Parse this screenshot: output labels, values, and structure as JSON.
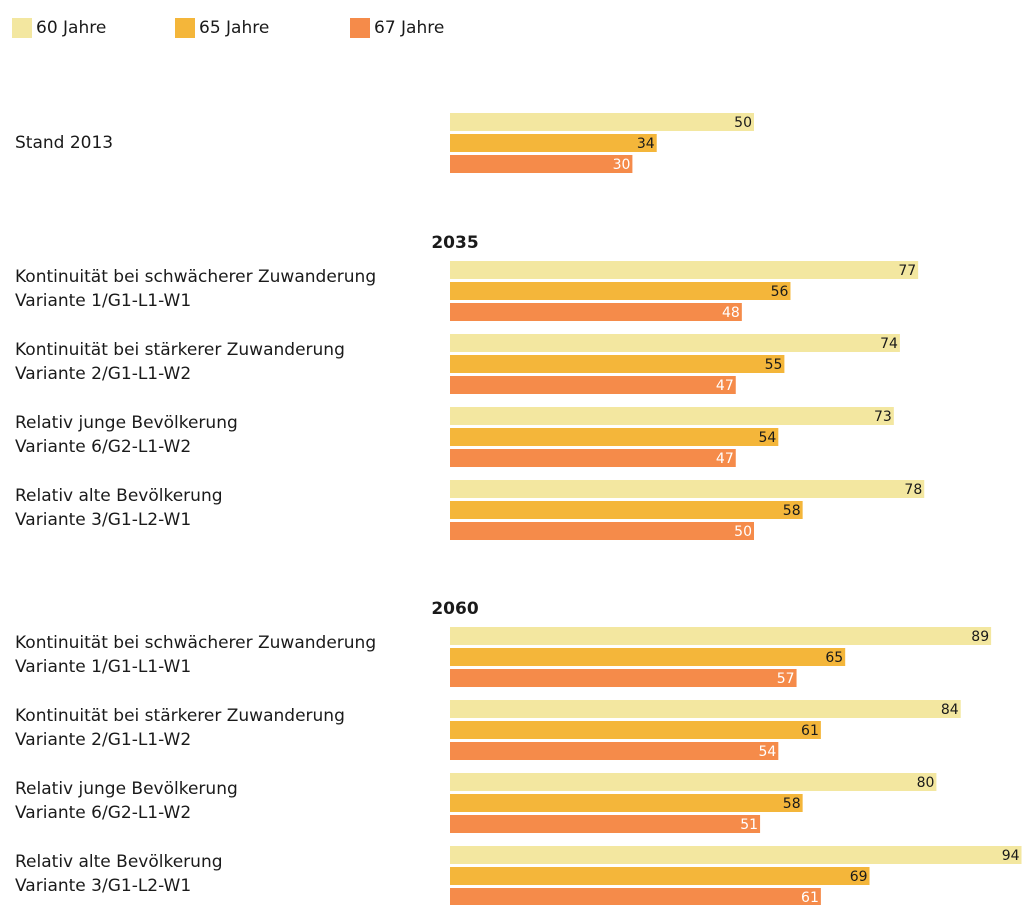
{
  "chart_data": {
    "type": "bar",
    "series": [
      {
        "name": "60 Jahre",
        "color": "#f3e7a0"
      },
      {
        "name": "65 Jahre",
        "color": "#f4b63a"
      },
      {
        "name": "67 Jahre",
        "color": "#f58b4a"
      }
    ],
    "groups": [
      {
        "title": null,
        "categories": [
          [
            "Stand 2013"
          ]
        ],
        "values": [
          [
            50
          ],
          [
            34
          ],
          [
            30
          ]
        ]
      },
      {
        "title": "2035",
        "categories": [
          [
            "Kontinuität bei schwächerer Zuwanderung",
            "Variante 1/G1-L1-W1"
          ],
          [
            "Kontinuität bei stärkerer Zuwanderung",
            "Variante 2/G1-L1-W2"
          ],
          [
            "Relativ junge Bevölkerung",
            "Variante 6/G2-L1-W2"
          ],
          [
            "Relativ alte Bevölkerung",
            "Variante 3/G1-L2-W1"
          ]
        ],
        "values": [
          [
            77,
            74,
            73,
            78
          ],
          [
            56,
            55,
            54,
            58
          ],
          [
            48,
            47,
            47,
            50
          ]
        ]
      },
      {
        "title": "2060",
        "categories": [
          [
            "Kontinuität bei schwächerer Zuwanderung",
            "Variante 1/G1-L1-W1"
          ],
          [
            "Kontinuität bei stärkerer Zuwanderung",
            "Variante 2/G1-L1-W2"
          ],
          [
            "Relativ junge Bevölkerung",
            "Variante 6/G2-L1-W2"
          ],
          [
            "Relativ alte Bevölkerung",
            "Variante 3/G1-L2-W1"
          ]
        ],
        "values": [
          [
            89,
            84,
            80,
            94
          ],
          [
            65,
            61,
            58,
            69
          ],
          [
            57,
            54,
            51,
            61
          ]
        ]
      }
    ]
  }
}
